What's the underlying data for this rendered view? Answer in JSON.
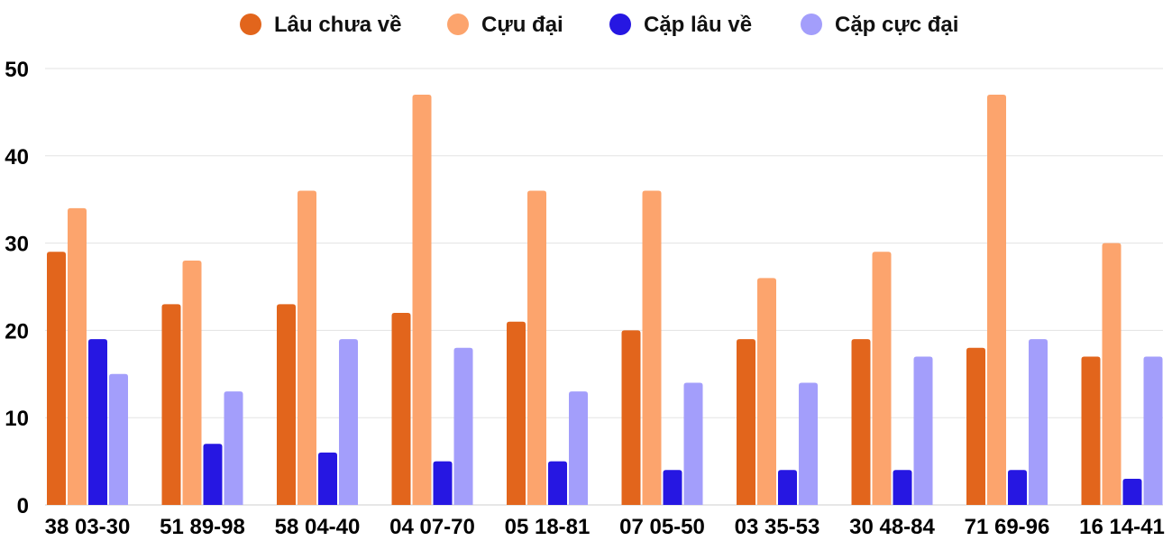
{
  "chart_data": {
    "type": "bar",
    "title": "",
    "xlabel": "",
    "ylabel": "",
    "ylim": [
      0,
      50
    ],
    "yticks": [
      0,
      10,
      20,
      30,
      40,
      50
    ],
    "grid": true,
    "legend_position": "top",
    "categories": [
      "38 03-30",
      "51 89-98",
      "58 04-40",
      "04 07-70",
      "05 18-81",
      "07 05-50",
      "03 35-53",
      "30 48-84",
      "71 69-96",
      "16 14-41"
    ],
    "series": [
      {
        "name": "Lâu chưa về",
        "color": "#E2651C",
        "values": [
          29,
          23,
          23,
          22,
          21,
          20,
          19,
          19,
          18,
          17
        ]
      },
      {
        "name": "Cựu đại",
        "color": "#FCA46D",
        "values": [
          34,
          28,
          36,
          47,
          36,
          36,
          26,
          29,
          47,
          30
        ]
      },
      {
        "name": "Cặp lâu về",
        "color": "#2617E2",
        "values": [
          19,
          7,
          6,
          5,
          5,
          4,
          4,
          4,
          4,
          3
        ]
      },
      {
        "name": "Cặp cực đại",
        "color": "#A39EFB",
        "values": [
          15,
          13,
          19,
          18,
          13,
          14,
          14,
          17,
          19,
          17
        ]
      }
    ]
  }
}
